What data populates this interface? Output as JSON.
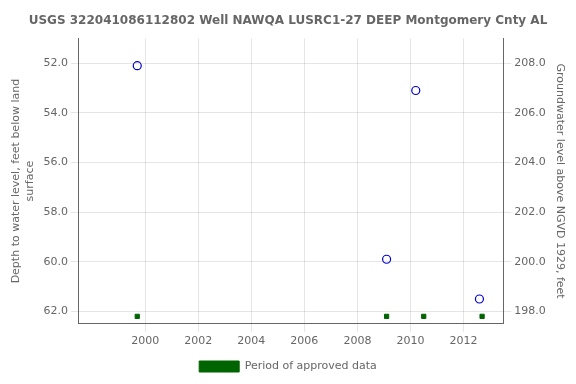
{
  "chart_data": {
    "type": "scatter",
    "title": "USGS 322041086112802 Well NAWQA LUSRC1-27 DEEP Montgomery Cnty AL",
    "ylabel": "Depth to water level, feet below land\nsurface",
    "y2label": "Groundwater level above NGVD 1929, feet",
    "xlim": [
      1997.5,
      2013.5
    ],
    "xticks": [
      2000,
      2002,
      2004,
      2006,
      2008,
      2010,
      2012
    ],
    "ylim": [
      62.5,
      51.0
    ],
    "yticks": [
      {
        "value": 52.0,
        "label": "52.0"
      },
      {
        "value": 54.0,
        "label": "54.0"
      },
      {
        "value": 56.0,
        "label": "56.0"
      },
      {
        "value": 58.0,
        "label": "58.0"
      },
      {
        "value": 60.0,
        "label": "60.0"
      },
      {
        "value": 62.0,
        "label": "62.0"
      }
    ],
    "y2lim": [
      197.5,
      209.0
    ],
    "y2ticks": [
      {
        "value": 198.0,
        "label": "198.0"
      },
      {
        "value": 200.0,
        "label": "200.0"
      },
      {
        "value": 202.0,
        "label": "202.0"
      },
      {
        "value": 204.0,
        "label": "204.0"
      },
      {
        "value": 206.0,
        "label": "206.0"
      },
      {
        "value": 208.0,
        "label": "208.0"
      }
    ],
    "grid": true,
    "legend": "bottom",
    "series": [
      {
        "color": "#0000cc",
        "marker": "circle",
        "x": [
          1999.7,
          2009.1,
          2010.2,
          2012.6
        ],
        "values": [
          52.1,
          59.9,
          53.1,
          61.5
        ]
      },
      {
        "name": "Period of approved data",
        "color": "#006400",
        "marker": "square",
        "x": [
          1999.7,
          2009.1,
          2010.5,
          2012.7
        ],
        "values": [
          62.2,
          62.2,
          62.2,
          62.2
        ]
      }
    ]
  }
}
